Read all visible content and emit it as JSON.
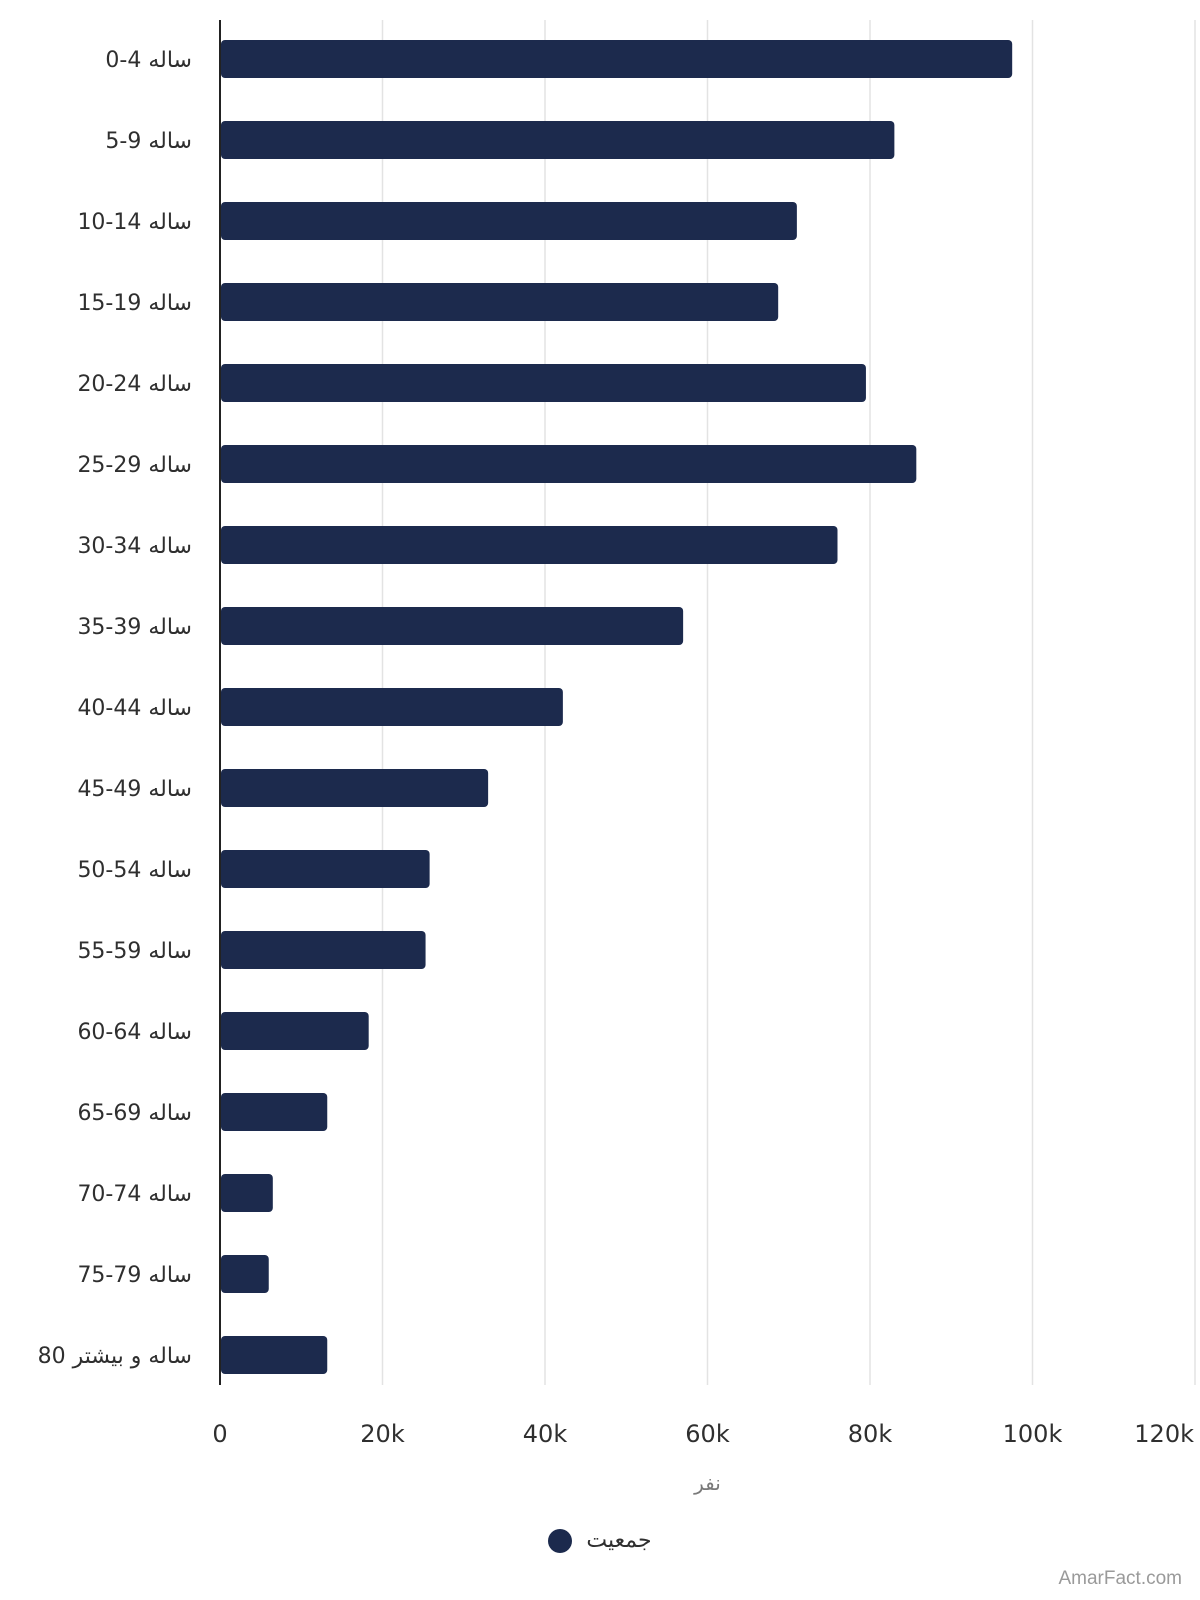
{
  "chart_data": {
    "type": "bar",
    "orientation": "horizontal",
    "categories": [
      "0-4 ساله",
      "5-9 ساله",
      "10-14 ساله",
      "15-19 ساله",
      "20-24 ساله",
      "25-29 ساله",
      "30-34 ساله",
      "35-39 ساله",
      "40-44 ساله",
      "45-49 ساله",
      "50-54 ساله",
      "55-59 ساله",
      "60-64 ساله",
      "65-69 ساله",
      "70-74 ساله",
      "75-79 ساله",
      "80 ساله و بیشتر"
    ],
    "series": [
      {
        "name": "جمعیت",
        "color": "#1c2a4d",
        "values": [
          97500,
          83000,
          71000,
          68700,
          79500,
          85700,
          76000,
          57000,
          42200,
          33000,
          25800,
          25300,
          18300,
          13200,
          6500,
          6000,
          13200
        ]
      }
    ],
    "xlabel": "نفر",
    "xlim": [
      0,
      120000
    ],
    "xticks": [
      0,
      20000,
      40000,
      60000,
      80000,
      100000,
      120000
    ],
    "xtick_labels": [
      "0",
      "20k",
      "40k",
      "60k",
      "80k",
      "100k",
      "120k"
    ],
    "grid": true,
    "legend_position": "bottom-center"
  },
  "legend": {
    "label": "جمعیت",
    "color": "#1c2a4d"
  },
  "watermark": "AmarFact.com"
}
